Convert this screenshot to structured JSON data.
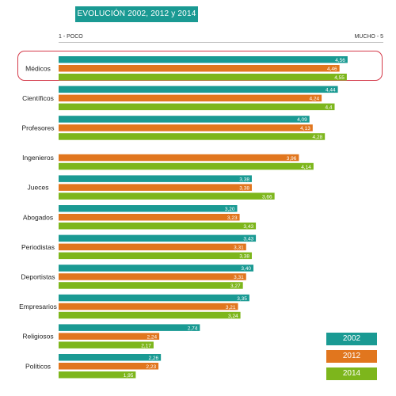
{
  "title": "EVOLUCIÓN 2002, 2012 y 2014",
  "scale": {
    "low_label": "1 - POCO",
    "high_label": "MUCHO - 5"
  },
  "colors": {
    "s2002": "#1a9a93",
    "s2012": "#e1761e",
    "s2014": "#7db61c",
    "highlight": "#d43a4a"
  },
  "chart_data": {
    "type": "bar",
    "orientation": "horizontal",
    "title": "EVOLUCIÓN 2002, 2012 y 2014",
    "xlim": [
      1,
      5
    ],
    "categories": [
      "Médicos",
      "Científicos",
      "Profesores",
      "Ingenieros",
      "Jueces",
      "Abogados",
      "Periodistas",
      "Deportistas",
      "Empresarios",
      "Religiosos",
      "Políticos"
    ],
    "highlighted_category": "Médicos",
    "series": [
      {
        "name": "2002",
        "values": [
          4.56,
          4.44,
          4.09,
          null,
          3.38,
          3.2,
          3.43,
          3.4,
          3.35,
          2.74,
          2.26
        ],
        "labels": [
          "4,56",
          "4,44",
          "4,09",
          null,
          "3,38",
          "3,20",
          "3,43",
          "3,40",
          "3,35",
          "2,74",
          "2,26"
        ]
      },
      {
        "name": "2012",
        "values": [
          4.46,
          4.24,
          4.13,
          3.96,
          3.38,
          3.23,
          3.31,
          3.31,
          3.21,
          2.24,
          2.23
        ],
        "labels": [
          "4,46",
          "4,24",
          "4,13",
          "3,96",
          "3,38",
          "3,23",
          "3,31",
          "3,31",
          "3,21",
          "2,24",
          "2,23"
        ]
      },
      {
        "name": "2014",
        "values": [
          4.55,
          4.4,
          4.28,
          4.14,
          3.66,
          3.43,
          3.38,
          3.27,
          3.24,
          2.17,
          1.95
        ],
        "labels": [
          "4,55",
          "4,4",
          "4,28",
          "4,14",
          "3,66",
          "3,43",
          "3,38",
          "3,27",
          "3,24",
          "2,17",
          "1,95"
        ]
      }
    ],
    "legend": {
      "position": "bottom-right",
      "entries": [
        "2002",
        "2012",
        "2014"
      ]
    }
  }
}
